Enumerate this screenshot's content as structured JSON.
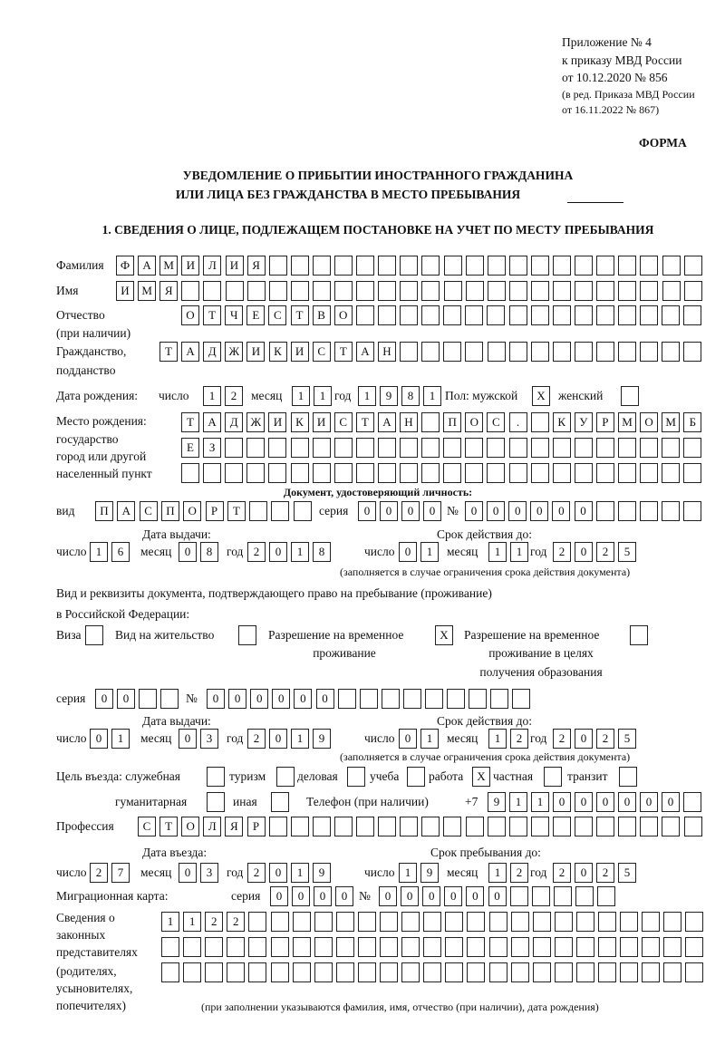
{
  "header": {
    "annex": [
      "Приложение № 4",
      "к приказу МВД России",
      "от 10.12.2020 № 856",
      "(в ред. Приказа МВД России",
      "от 16.11.2022 № 867)"
    ],
    "form_label": "ФОРМА",
    "title_line1": "УВЕДОМЛЕНИЕ О ПРИБЫТИИ ИНОСТРАННОГО ГРАЖДАНИНА",
    "title_line2": "ИЛИ ЛИЦА БЕЗ ГРАЖДАНСТВА В МЕСТО ПРЕБЫВАНИЯ",
    "section1_title": "1. СВЕДЕНИЯ О ЛИЦЕ, ПОДЛЕЖАЩЕМ ПОСТАНОВКЕ НА УЧЕТ ПО МЕСТУ ПРЕБЫВАНИЯ"
  },
  "person": {
    "surname_label": "Фамилия",
    "surname": "ФАМИЛИЯ",
    "name_label": "Имя",
    "name": "ИМЯ",
    "patronymic_label": "Отчество",
    "patronymic_label2": "(при наличии)",
    "patronymic": "ОТЧЕСТВО",
    "citizenship_label": "Гражданство,",
    "citizenship_label2": "подданство",
    "citizenship": "ТАДЖИКИСТАН",
    "birth": {
      "label": "Дата рождения:",
      "day_label": "число",
      "day": "12",
      "month_label": "месяц",
      "month": "11",
      "year_label": "год",
      "year": "1981"
    },
    "sex": {
      "label": "Пол: мужской",
      "male": "X",
      "female_label": "женский",
      "female": ""
    },
    "birthplace": {
      "label1": "Место рождения:",
      "label2": "государство",
      "label3": "город или другой",
      "label4": "населенный пункт",
      "row1": "ТАДЖИКИСТАН ПОС. КУРМОМБ",
      "row2": "ЕЗ",
      "row3": ""
    }
  },
  "id_document": {
    "heading": "Документ, удостоверяющий личность:",
    "type_label": "вид",
    "type": "ПАСПОРТ",
    "series_label": "серия",
    "series": "0000",
    "number_label": "№",
    "number": "000000",
    "issue": {
      "label": "Дата выдачи:",
      "day_label": "число",
      "day": "16",
      "month_label": "месяц",
      "month": "08",
      "year_label": "год",
      "year": "2018"
    },
    "expiry": {
      "label": "Срок действия до:",
      "day_label": "число",
      "day": "01",
      "month_label": "месяц",
      "month": "11",
      "year_label": "год",
      "year": "2025"
    },
    "note": "(заполняется в случае ограничения срока действия документа)"
  },
  "residence_document": {
    "heading1": "Вид и реквизиты документа, подтверждающего право на пребывание (проживание)",
    "heading2": "в Российской Федерации:",
    "visa_label": "Виза",
    "visa": "",
    "residence_permit_label": "Вид на жительство",
    "residence_permit": "",
    "temp_permit_label1": "Разрешение на временное",
    "temp_permit_label2": "проживание",
    "temp_permit": "X",
    "temp_edu_label1": "Разрешение на временное",
    "temp_edu_label2": "проживание в целях",
    "temp_edu_label3": "получения образования",
    "temp_edu": "",
    "series_label": "серия",
    "series": "00",
    "number_label": "№",
    "number": "000000",
    "issue": {
      "label": "Дата выдачи:",
      "day_label": "число",
      "day": "01",
      "month_label": "месяц",
      "month": "03",
      "year_label": "год",
      "year": "2019"
    },
    "expiry": {
      "label": "Срок действия до:",
      "day_label": "число",
      "day": "01",
      "month_label": "месяц",
      "month": "12",
      "year_label": "год",
      "year": "2025"
    },
    "note": "(заполняется в случае ограничения срока действия документа)"
  },
  "purpose": {
    "label": "Цель въезда: служебная",
    "official": "",
    "tourism_label": "туризм",
    "tourism": "",
    "business_label": "деловая",
    "business": "",
    "study_label": "учеба",
    "study": "",
    "work_label": "работа",
    "work": "X",
    "private_label": "частная",
    "private": "",
    "transit_label": "транзит",
    "transit": "",
    "humanitarian_label": "гуманитарная",
    "humanitarian": "",
    "other_label": "иная",
    "other": ""
  },
  "phone": {
    "label": "Телефон (при наличии)",
    "prefix": "+7",
    "number": "911000000"
  },
  "profession": {
    "label": "Профессия",
    "value": "СТОЛЯР"
  },
  "entry": {
    "label": "Дата въезда:",
    "day_label": "число",
    "day": "27",
    "month_label": "месяц",
    "month": "03",
    "year_label": "год",
    "year": "2019"
  },
  "stay_until": {
    "label": "Срок пребывания до:",
    "day_label": "число",
    "day": "19",
    "month_label": "месяц",
    "month": "12",
    "year_label": "год",
    "year": "2025"
  },
  "migration_card": {
    "label": "Миграционная карта:",
    "series_label": "серия",
    "series": "0000",
    "number_label": "№",
    "number": "000000"
  },
  "representatives": {
    "label": [
      "Сведения о",
      "законных",
      "представителях",
      "(родителях,",
      "усыновителях,",
      "попечителях)"
    ],
    "row1": "1122",
    "row2": "",
    "row3": "",
    "note": "(при заполнении указываются фамилия, имя, отчество (при наличии), дата рождения)"
  }
}
